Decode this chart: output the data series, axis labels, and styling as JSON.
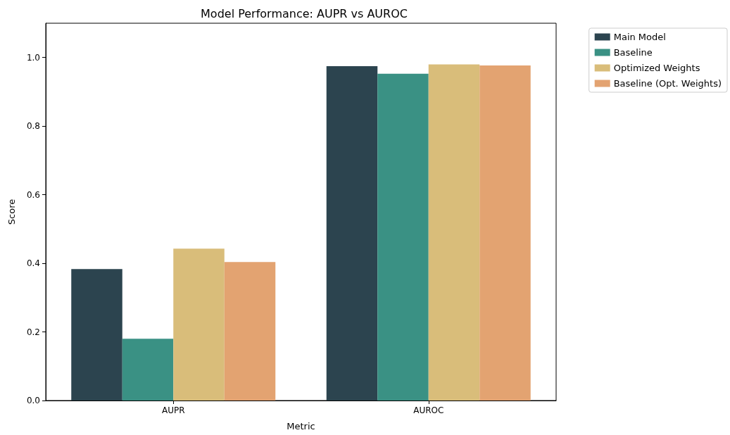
{
  "chart_data": {
    "type": "bar",
    "title": "Model Performance: AUPR vs AUROC",
    "xlabel": "Metric",
    "ylabel": "Score",
    "categories": [
      "AUPR",
      "AUROC"
    ],
    "series": [
      {
        "name": "Main Model",
        "color": "#2c444f",
        "values": [
          0.383,
          0.975
        ]
      },
      {
        "name": "Baseline",
        "color": "#3a9184",
        "values": [
          0.18,
          0.953
        ]
      },
      {
        "name": "Optimized Weights",
        "color": "#d9bd7a",
        "values": [
          0.443,
          0.98
        ]
      },
      {
        "name": "Baseline (Opt. Weights)",
        "color": "#e3a371",
        "values": [
          0.404,
          0.977
        ]
      }
    ],
    "ylim": [
      0,
      1.1
    ],
    "yticks": [
      {
        "value": 0,
        "label": "0.0"
      },
      {
        "value": 0.2,
        "label": "0.2"
      },
      {
        "value": 0.4,
        "label": "0.4"
      },
      {
        "value": 0.6,
        "label": "0.6"
      },
      {
        "value": 0.8,
        "label": "0.8"
      },
      {
        "value": 1,
        "label": "1.0"
      }
    ],
    "grid": false,
    "legend": "top right"
  }
}
